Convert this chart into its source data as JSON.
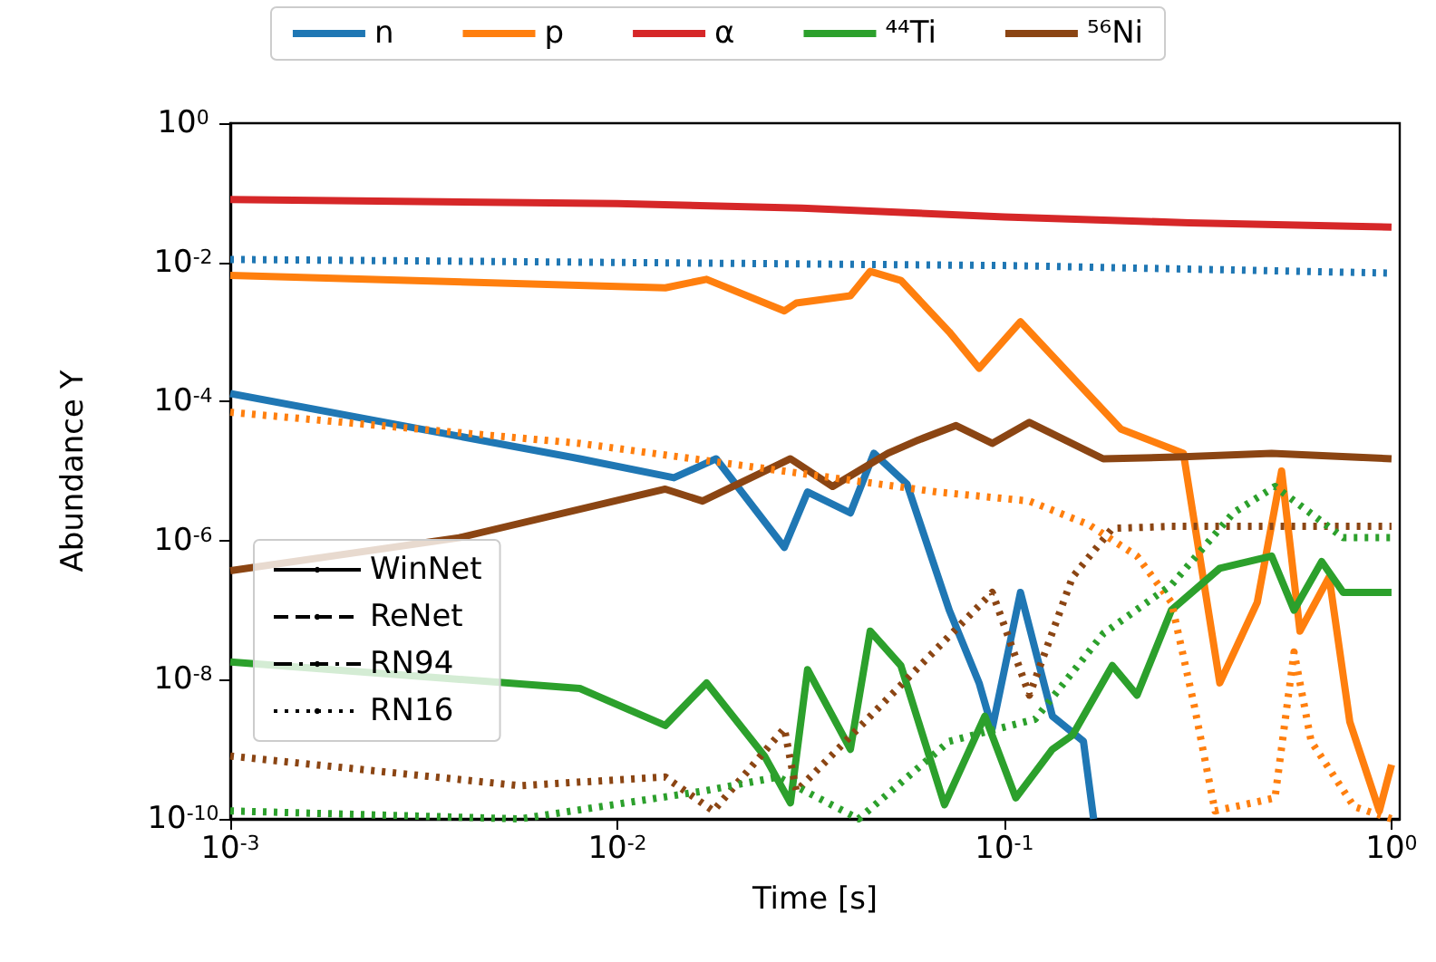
{
  "chart_data": {
    "type": "line",
    "xlabel": "Time [s]",
    "ylabel": "Abundance Y",
    "log": "xy",
    "grid": false,
    "legend": "top",
    "marker": "none",
    "xlim": [
      0.001,
      1.05
    ],
    "xticks": [
      {
        "value": 0.001,
        "label": "10$^{-3}$"
      },
      {
        "value": 0.01,
        "label": "10$^{-2}$"
      },
      {
        "value": 0.1,
        "label": "10$^{-1}$"
      },
      {
        "value": 1,
        "label": "10$^{0}$"
      }
    ],
    "ylim": [
      1e-10,
      1
    ],
    "yticks": [
      {
        "value": 1e-10,
        "label": "10$^{-10}$"
      },
      {
        "value": 1e-08,
        "label": "10$^{-8}$"
      },
      {
        "value": 1e-06,
        "label": "10$^{-6}$"
      },
      {
        "value": 0.0001,
        "label": "10$^{-4}$"
      },
      {
        "value": 0.01,
        "label": "10$^{-2}$"
      },
      {
        "value": 1,
        "label": "10$^{0}$"
      }
    ],
    "series": [
      {
        "name": "n",
        "color": "#1f77b4",
        "line_style": "solid",
        "x": [
          0.001,
          0.008,
          0.014,
          0.018,
          0.027,
          0.031,
          0.04,
          0.046,
          0.056,
          0.072,
          0.086,
          0.093,
          0.11,
          0.133,
          0.16,
          0.17
        ],
        "values": [
          0.00013,
          1.5e-05,
          8e-06,
          1.5e-05,
          8e-07,
          5e-06,
          2.5e-06,
          1.8e-05,
          6.5e-06,
          1e-07,
          9e-09,
          2e-09,
          1.8e-07,
          3e-09,
          1.3e-09,
          1e-10
        ]
      },
      {
        "name": "p",
        "color": "#ff7f0e",
        "line_style": "solid",
        "x": [
          0.001,
          0.0133,
          0.017,
          0.027,
          0.029,
          0.04,
          0.045,
          0.054,
          0.072,
          0.086,
          0.11,
          0.2,
          0.29,
          0.36,
          0.45,
          0.52,
          0.58,
          0.69,
          0.78,
          0.93,
          1.0
        ],
        "values": [
          0.0065,
          0.0043,
          0.0057,
          0.002,
          0.0026,
          0.0033,
          0.0074,
          0.0055,
          0.001,
          0.0003,
          0.0014,
          4e-05,
          1.8e-05,
          9e-09,
          1.3e-07,
          1e-05,
          5e-08,
          3e-07,
          2.5e-09,
          1.3e-10,
          6e-10
        ]
      },
      {
        "name": "α",
        "color": "#d62728",
        "line_style": "solid",
        "x": [
          0.001,
          0.01,
          0.03,
          0.1,
          0.3,
          1.0
        ],
        "values": [
          0.08,
          0.07,
          0.06,
          0.045,
          0.037,
          0.032
        ]
      },
      {
        "name": "⁴⁴Ti",
        "color": "#2ca02c",
        "line_style": "solid",
        "x": [
          0.001,
          0.008,
          0.0133,
          0.017,
          0.024,
          0.028,
          0.031,
          0.04,
          0.045,
          0.054,
          0.07,
          0.089,
          0.107,
          0.133,
          0.15,
          0.19,
          0.22,
          0.27,
          0.36,
          0.49,
          0.56,
          0.66,
          0.75,
          1.0
        ],
        "values": [
          1.8e-08,
          7.5e-09,
          2.2e-09,
          9e-09,
          8e-10,
          1.7e-10,
          1.4e-08,
          1e-09,
          5e-08,
          1.6e-08,
          1.6e-10,
          3e-09,
          2e-10,
          1e-09,
          1.6e-09,
          1.6e-08,
          6e-09,
          1e-07,
          4e-07,
          6e-07,
          1e-07,
          5e-07,
          1.8e-07,
          1.8e-07
        ]
      },
      {
        "name": "⁵⁶Ni",
        "color": "#8b4513",
        "line_style": "solid",
        "x": [
          0.001,
          0.0039,
          0.0133,
          0.0166,
          0.028,
          0.036,
          0.05,
          0.06,
          0.075,
          0.093,
          0.116,
          0.18,
          0.29,
          0.49,
          1.0
        ],
        "values": [
          3.7e-07,
          1.1e-06,
          5.5e-06,
          3.7e-06,
          1.5e-05,
          6e-06,
          1.8e-05,
          2.8e-05,
          4.5e-05,
          2.5e-05,
          5e-05,
          1.5e-05,
          1.6e-05,
          1.8e-05,
          1.5e-05
        ]
      },
      {
        "color": "#1f77b4",
        "line_style": "dotted",
        "x": [
          0.001,
          0.1,
          1.0
        ],
        "values": [
          0.011,
          0.009,
          0.007
        ]
      },
      {
        "color": "#ff7f0e",
        "line_style": "dotted",
        "x": [
          0.001,
          0.008,
          0.067,
          0.116,
          0.165,
          0.22,
          0.27,
          0.31,
          0.35,
          0.5,
          0.56,
          0.62,
          0.8,
          1.0
        ],
        "values": [
          7e-05,
          2.5e-05,
          5e-06,
          3.7e-06,
          1.7e-06,
          6e-07,
          1.3e-07,
          4e-09,
          1.3e-10,
          2e-10,
          2.5e-08,
          1.3e-09,
          1.5e-10,
          1e-10
        ]
      },
      {
        "color": "#8b4513",
        "line_style": "dotted",
        "x": [
          0.001,
          0.0056,
          0.0133,
          0.0177,
          0.027,
          0.029,
          0.093,
          0.116,
          0.15,
          0.19,
          0.27,
          0.52,
          1.0
        ],
        "values": [
          8e-10,
          3e-10,
          4e-10,
          1.3e-10,
          2e-09,
          2.5e-10,
          1.8e-07,
          6e-09,
          3e-07,
          1.5e-06,
          1.6e-06,
          1.6e-06,
          1.6e-06
        ]
      },
      {
        "color": "#2ca02c",
        "line_style": "dotted",
        "x": [
          0.001,
          0.0056,
          0.0166,
          0.026,
          0.042,
          0.072,
          0.12,
          0.18,
          0.27,
          0.39,
          0.5,
          0.75,
          1.0
        ],
        "values": [
          1.3e-10,
          1e-10,
          2.5e-10,
          4e-10,
          1e-10,
          1.3e-09,
          2.7e-09,
          4.6e-08,
          2.3e-07,
          2.5e-06,
          6e-06,
          1.1e-06,
          1.1e-06
        ]
      },
      {
        "name": "WinNet",
        "color": "#000000",
        "line_style": "solid"
      },
      {
        "name": "ReNet",
        "color": "#000000",
        "line_style": "dashed"
      },
      {
        "name": "RN94",
        "color": "#000000",
        "line_style": "dashdot"
      },
      {
        "name": "RN16",
        "color": "#000000",
        "line_style": "dotted"
      }
    ]
  }
}
